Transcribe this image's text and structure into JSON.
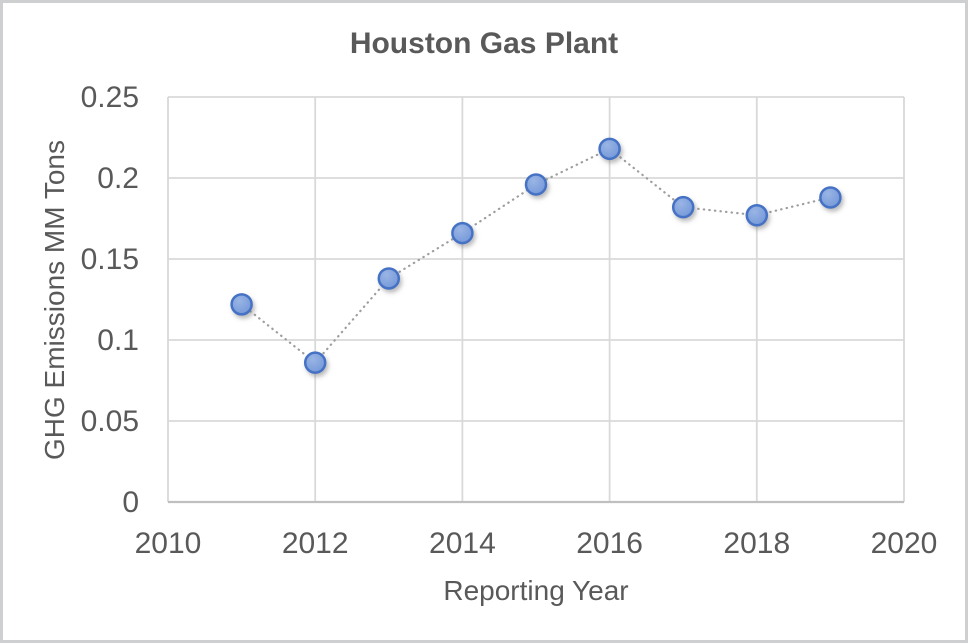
{
  "window": {
    "background": "#FFFFFF",
    "border_color": "#CDCFD0"
  },
  "chart_data": {
    "type": "scatter",
    "title": "Houston Gas Plant",
    "xlabel": "Reporting Year",
    "ylabel": "GHG Emissions MM Tons",
    "x": [
      2011,
      2012,
      2013,
      2014,
      2015,
      2016,
      2017,
      2018,
      2019
    ],
    "y": [
      0.122,
      0.086,
      0.138,
      0.166,
      0.196,
      0.218,
      0.182,
      0.177,
      0.188
    ],
    "xlim": [
      2010,
      2020
    ],
    "ylim": [
      0,
      0.25
    ],
    "xticks": [
      2010,
      2012,
      2014,
      2016,
      2018,
      2020
    ],
    "xtick_labels": [
      "2010",
      "2012",
      "2014",
      "2016",
      "2018",
      "2020"
    ],
    "yticks": [
      0,
      0.05,
      0.1,
      0.15,
      0.2,
      0.25
    ],
    "ytick_labels": [
      "0",
      "0.05",
      "0.1",
      "0.15",
      "0.2",
      "0.25"
    ],
    "grid": true,
    "legend": "none",
    "line_style": "dotted",
    "marker_style": "circle",
    "colors": {
      "marker_fill": "#6E93D6",
      "marker_fill_light": "#9AB5E5",
      "marker_border": "#4472C4",
      "connector_line": "#9E9E9E",
      "gridline": "#D9D9D9",
      "axis_line": "#BFBFBF",
      "text": "#595959"
    }
  }
}
